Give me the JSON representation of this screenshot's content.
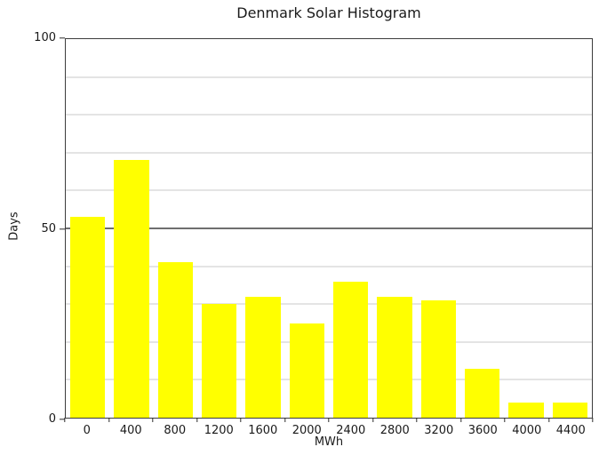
{
  "chart_data": {
    "type": "bar",
    "title": "Denmark Solar Histogram",
    "xlabel": "MWh",
    "ylabel": "Days",
    "categories": [
      "0",
      "400",
      "800",
      "1200",
      "1600",
      "2000",
      "2400",
      "2800",
      "3200",
      "3600",
      "4000",
      "4400"
    ],
    "values": [
      53,
      68,
      41,
      30,
      32,
      25,
      36,
      32,
      31,
      13,
      4,
      4
    ],
    "ylim": [
      0,
      100
    ],
    "yticks": [
      0,
      50,
      100
    ],
    "grid_step": 10,
    "grid_major_every": 50,
    "grid": "horizontal",
    "legend": "none",
    "bar_fill_fraction": 0.8,
    "colors": {
      "bar": "#ffff00",
      "grid_minor": "#c9c9c9",
      "grid_major": "#6e6e6e",
      "spine": "#3c3c3c",
      "text": "#1a1a1a",
      "background": "#ffffff"
    }
  }
}
